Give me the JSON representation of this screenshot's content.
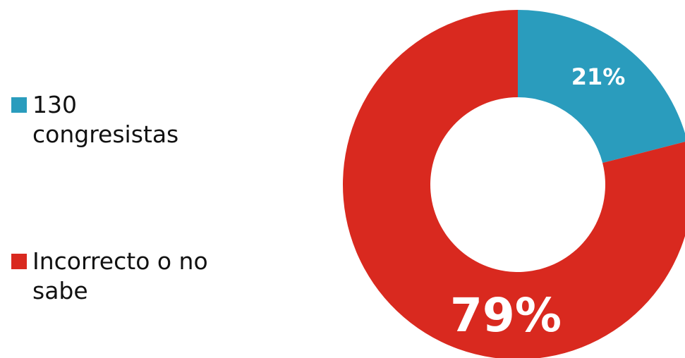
{
  "chart_data": {
    "type": "pie",
    "donut": true,
    "categories": [
      "130 congresistas",
      "Incorrecto o no sabe"
    ],
    "values": [
      21,
      79
    ],
    "data_labels": [
      "21%",
      "79%"
    ],
    "colors": [
      "#2A9CBD",
      "#D9291F"
    ],
    "legend_position": "left"
  }
}
